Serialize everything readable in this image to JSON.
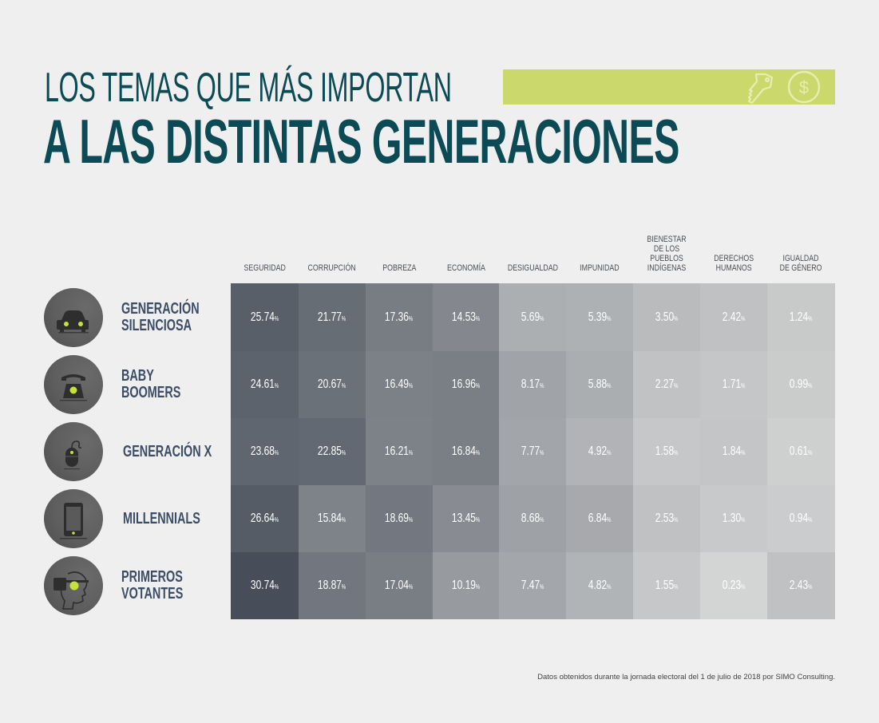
{
  "header": {
    "title_line1": "LOS TEMAS QUE MÁS IMPORTAN",
    "title_line2": "A LAS DISTINTAS GENERACIONES",
    "banner_color": "#cad86c",
    "banner_icons": [
      "key-icon",
      "dollar-coin-icon"
    ]
  },
  "chart_data": {
    "type": "heatmap",
    "title": "LOS TEMAS QUE MÁS IMPORTAN A LAS DISTINTAS GENERACIONES",
    "unit": "%",
    "columns": [
      "SEGURIDAD",
      "CORRUPCIÓN",
      "POBREZA",
      "ECONOMÍA",
      "DESIGUALDAD",
      "IMPUNIDAD",
      "BIENESTAR\nDE LOS PUEBLOS\nINDÍGENAS",
      "DERECHOS\nHUMANOS",
      "IGUALDAD\nDE GÉNERO"
    ],
    "rows": [
      {
        "name": "GENERACIÓN\nSILENCIOSA",
        "icon": "car-icon",
        "values": [
          25.74,
          21.77,
          17.36,
          14.53,
          5.69,
          5.39,
          3.5,
          2.42,
          1.24
        ],
        "labels": [
          "25.74",
          "21.77",
          "17.36",
          "14.53",
          "5.69",
          "5.39",
          "3.50",
          "2.42",
          "1.24"
        ]
      },
      {
        "name": "BABY\nBOOMERS",
        "icon": "telephone-icon",
        "values": [
          24.61,
          20.67,
          16.49,
          16.96,
          8.17,
          5.88,
          2.27,
          1.71,
          0.99
        ],
        "labels": [
          "24.61",
          "20.67",
          "16.49",
          "16.96",
          "8.17",
          "5.88",
          "2.27",
          "1.71",
          "0.99"
        ]
      },
      {
        "name": "GENERACIÓN X",
        "icon": "mouse-icon",
        "values": [
          23.68,
          22.85,
          16.21,
          16.84,
          7.77,
          4.92,
          1.58,
          1.84,
          0.61
        ],
        "labels": [
          "23.68",
          "22.85",
          "16.21",
          "16.84",
          "7.77",
          "4.92",
          "1.58",
          "1.84",
          "0.61"
        ]
      },
      {
        "name": "MILLENNIALS",
        "icon": "smartphone-icon",
        "values": [
          26.64,
          15.84,
          18.69,
          13.45,
          8.68,
          6.84,
          2.53,
          1.3,
          0.94
        ],
        "labels": [
          "26.64",
          "15.84",
          "18.69",
          "13.45",
          "8.68",
          "6.84",
          "2.53",
          "1.30",
          "0.94"
        ]
      },
      {
        "name": "PRIMEROS\nVOTANTES",
        "icon": "vr-headset-icon",
        "values": [
          30.74,
          18.87,
          17.04,
          10.19,
          7.47,
          4.82,
          1.55,
          0.23,
          2.43
        ],
        "labels": [
          "30.74",
          "18.87",
          "17.04",
          "10.19",
          "7.47",
          "4.82",
          "1.55",
          "0.23",
          "2.43"
        ]
      }
    ],
    "color_scale": {
      "low": "#d3d4d4",
      "high": "#474e59"
    }
  },
  "footnote": "Datos obtenidos durante la jornada electoral del 1 de julio de 2018 por SIMO Consulting."
}
